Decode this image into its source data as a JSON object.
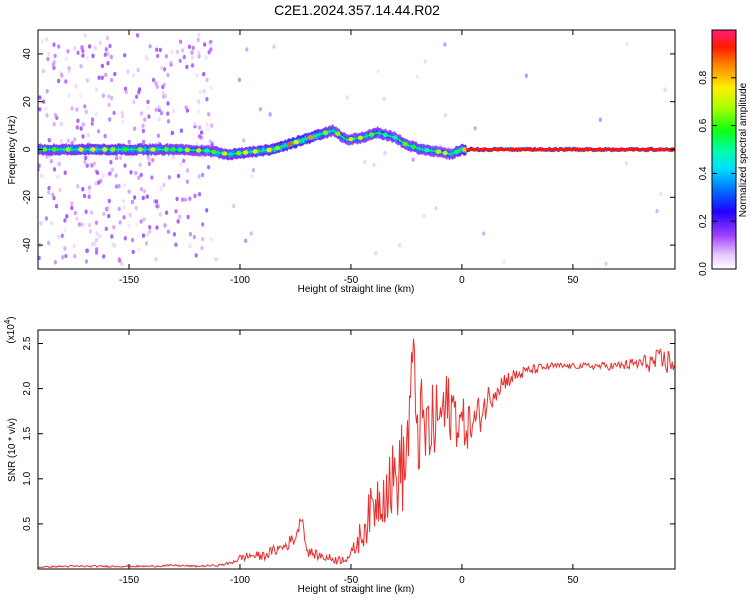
{
  "title": "C2E1.2024.357.14.44.R02",
  "colors": {
    "snr_line": "#e8302e",
    "background": "#ffffff",
    "frame": "#000000"
  },
  "chart_data": [
    {
      "type": "heatmap",
      "xlabel": "Height of straight line (km)",
      "ylabel": "Frequency (Hz)",
      "xlim": [
        -191,
        96
      ],
      "ylim": [
        -50,
        50
      ],
      "xticks": [
        -150,
        -100,
        -50,
        0,
        50
      ],
      "yticks": [
        -40,
        -20,
        0,
        20,
        40
      ],
      "grid": false,
      "colorbar": {
        "label": "Normalized spectral amplitude",
        "range": [
          0,
          1
        ],
        "ticks": [
          "0.0",
          "0.2",
          "0.4",
          "0.6",
          "0.8"
        ],
        "colormap": "rainbow"
      },
      "ridge": {
        "x": [
          -191,
          -170,
          -150,
          -130,
          -115,
          -105,
          -95,
          -85,
          -75,
          -65,
          -58,
          -52,
          -45,
          -38,
          -30,
          -25,
          -18,
          -10,
          -5,
          0,
          10,
          30,
          60,
          96
        ],
        "freq": [
          0,
          0,
          0,
          0,
          -0.5,
          -2,
          -1,
          0,
          3,
          6,
          8,
          4,
          5,
          7,
          5,
          2,
          0,
          -1,
          -2,
          0,
          0,
          0,
          0,
          0
        ],
        "amplitude": [
          0.5,
          0.55,
          0.55,
          0.5,
          0.45,
          0.55,
          0.55,
          0.6,
          0.65,
          0.6,
          0.5,
          0.45,
          0.5,
          0.5,
          0.45,
          0.5,
          0.5,
          0.45,
          0.45,
          0.6,
          0.95,
          0.95,
          0.95,
          0.9
        ]
      }
    },
    {
      "type": "line",
      "xlabel": "Height of straight line (km)",
      "ylabel": "SNR (10 * v/v)",
      "y_multiplier": "(x10^4)",
      "xlim": [
        -191,
        96
      ],
      "ylim": [
        0,
        2.65
      ],
      "xticks": [
        -150,
        -100,
        -50,
        0,
        50
      ],
      "yticks": [
        0.5,
        1.0,
        1.5,
        2.0,
        2.5
      ],
      "grid": false,
      "series": [
        {
          "x": [
            -191,
            -180,
            -170,
            -160,
            -150,
            -140,
            -130,
            -120,
            -110,
            -105,
            -100,
            -95,
            -90,
            -85,
            -80,
            -75,
            -72,
            -70,
            -65,
            -60,
            -55,
            -50,
            -45,
            -40,
            -35,
            -30,
            -25,
            -22,
            -20,
            -15,
            -10,
            -5,
            0,
            5,
            10,
            15,
            20,
            30,
            40,
            50,
            60,
            70,
            80,
            90,
            96
          ],
          "y": [
            0.02,
            0.03,
            0.03,
            0.03,
            0.03,
            0.03,
            0.04,
            0.03,
            0.04,
            0.06,
            0.12,
            0.15,
            0.14,
            0.2,
            0.25,
            0.35,
            0.6,
            0.2,
            0.15,
            0.12,
            0.1,
            0.15,
            0.4,
            0.7,
            0.9,
            1.0,
            1.2,
            2.4,
            1.6,
            1.5,
            1.7,
            1.8,
            1.6,
            1.6,
            1.8,
            2.0,
            2.1,
            2.2,
            2.25,
            2.25,
            2.25,
            2.25,
            2.28,
            2.3,
            2.3
          ],
          "jitter": [
            0.005,
            0.01,
            0.01,
            0.01,
            0.01,
            0.01,
            0.01,
            0.01,
            0.01,
            0.02,
            0.04,
            0.05,
            0.05,
            0.06,
            0.07,
            0.08,
            0.05,
            0.06,
            0.05,
            0.05,
            0.05,
            0.06,
            0.2,
            0.3,
            0.4,
            0.45,
            0.6,
            0.25,
            0.6,
            0.5,
            0.45,
            0.4,
            0.3,
            0.25,
            0.2,
            0.15,
            0.1,
            0.06,
            0.04,
            0.03,
            0.04,
            0.05,
            0.08,
            0.15,
            0.15
          ]
        }
      ]
    }
  ]
}
